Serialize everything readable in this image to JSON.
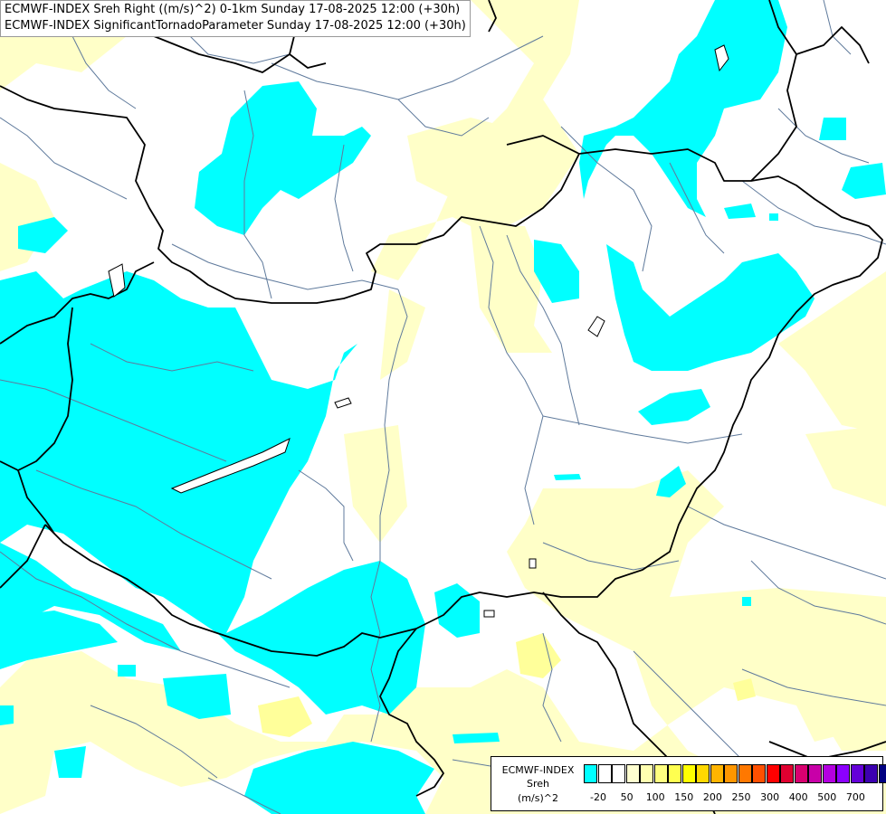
{
  "header": {
    "line1": "ECMWF-INDEX Sreh Right ((m/s)^2) 0-1km Sunday 17-08-2025 12:00 (+30h)",
    "line2": "ECMWF-INDEX SignificantTornadoParameter Sunday 17-08-2025 12:00 (+30h)"
  },
  "legend": {
    "title1": "ECMWF-INDEX",
    "title2": "Sreh",
    "title3": "(m/s)^2",
    "colors": [
      "#00ffff",
      "#ffffff",
      "#ffffff",
      "#ffffd0",
      "#ffffb0",
      "#ffff80",
      "#ffff50",
      "#ffff00",
      "#ffd800",
      "#ffb400",
      "#ff9600",
      "#ff7800",
      "#ff5000",
      "#ff0000",
      "#e00030",
      "#d80070",
      "#c800a8",
      "#b400e0",
      "#8c00ff",
      "#6400d8",
      "#3c00b0",
      "#000080"
    ],
    "ticks": [
      "-20",
      "50",
      "100",
      "150",
      "200",
      "250",
      "300",
      "400",
      "500",
      "700"
    ]
  },
  "map_colors": {
    "cyan": "#00ffff",
    "pale_yellow": "#ffffc8",
    "yellow": "#ffff9a",
    "border": "#000000",
    "river": "#5f7a9c"
  }
}
